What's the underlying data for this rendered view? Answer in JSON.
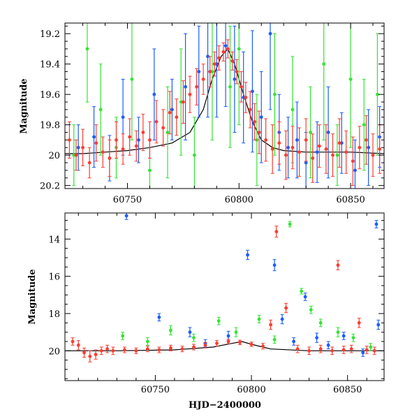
{
  "chart_data": [
    {
      "type": "scatter",
      "panel": "top",
      "title": "",
      "xlabel": "",
      "ylabel": "Magnitude",
      "xlim": [
        60722,
        60865
      ],
      "ylim": [
        20.22,
        19.13
      ],
      "y_inverted": true,
      "xticks": [
        60750,
        60800,
        60850
      ],
      "yticks": [
        19.2,
        19.4,
        19.6,
        19.8,
        20,
        20.2
      ],
      "xtick_labels": [
        "60750",
        "60800",
        "60850"
      ],
      "ytick_labels": [
        "19.2",
        "19.4",
        "19.6",
        "19.8",
        "20",
        "20.2"
      ],
      "grid": false,
      "legend": "none",
      "model_curve": {
        "color": "#000000",
        "x": [
          60722,
          60730,
          60740,
          60750,
          60760,
          60770,
          60778,
          60784,
          60788,
          60792,
          60795,
          60798,
          60802,
          60806,
          60810,
          60815,
          60820,
          60830,
          60840,
          60850,
          60865
        ],
        "y": [
          19.99,
          19.99,
          19.98,
          19.97,
          19.95,
          19.92,
          19.85,
          19.7,
          19.5,
          19.35,
          19.3,
          19.4,
          19.6,
          19.78,
          19.9,
          19.95,
          19.97,
          19.98,
          19.98,
          19.98,
          19.99
        ]
      },
      "series": [
        {
          "color": "#1a5cff",
          "description": "blue points",
          "x": [
            60728,
            60735,
            60742,
            60748,
            60755,
            60762,
            60770,
            60776,
            60782,
            60786,
            60790,
            60794,
            60798,
            60802,
            60806,
            60810,
            60814,
            60818,
            60822,
            60826,
            60830,
            60835,
            60840,
            60846,
            60852,
            60858,
            60863
          ],
          "y": [
            19.95,
            19.88,
            20.02,
            19.75,
            19.9,
            19.6,
            19.7,
            19.55,
            19.45,
            19.35,
            19.4,
            19.28,
            19.5,
            19.62,
            19.58,
            19.75,
            19.2,
            19.85,
            19.95,
            19.9,
            20.05,
            19.98,
            19.85,
            19.92,
            20.1,
            19.95,
            19.88
          ],
          "err": [
            0.15,
            0.2,
            0.15,
            0.25,
            0.15,
            0.3,
            0.2,
            0.35,
            0.3,
            0.4,
            0.35,
            0.4,
            0.35,
            0.3,
            0.4,
            0.3,
            0.5,
            0.25,
            0.2,
            0.25,
            0.2,
            0.2,
            0.3,
            0.2,
            0.2,
            0.25,
            0.2
          ]
        },
        {
          "color": "#33e433",
          "description": "green points",
          "x": [
            60726,
            60732,
            60738,
            60745,
            60752,
            60760,
            60768,
            60774,
            60780,
            60788,
            60796,
            60800,
            60808,
            60816,
            60824,
            60832,
            60838,
            60844,
            60850,
            60856,
            60862
          ],
          "y": [
            20.0,
            19.3,
            19.7,
            19.95,
            19.5,
            20.1,
            19.85,
            19.65,
            20.0,
            19.45,
            19.55,
            19.3,
            19.9,
            19.6,
            19.7,
            19.85,
            19.4,
            20.0,
            19.5,
            19.8,
            19.6
          ],
          "err": [
            0.2,
            0.35,
            0.3,
            0.2,
            0.4,
            0.2,
            0.3,
            0.35,
            0.25,
            0.45,
            0.4,
            0.5,
            0.3,
            0.4,
            0.35,
            0.3,
            0.5,
            0.2,
            0.45,
            0.3,
            0.4
          ]
        },
        {
          "color": "#ff3b2f",
          "description": "red points",
          "x": [
            60724,
            60727,
            60730,
            60733,
            60736,
            60739,
            60742,
            60745,
            60748,
            60751,
            60754,
            60757,
            60760,
            60763,
            60766,
            60769,
            60772,
            60775,
            60778,
            60781,
            60784,
            60787,
            60789,
            60791,
            60793,
            60795,
            60797,
            60799,
            60801,
            60803,
            60805,
            60807,
            60809,
            60812,
            60815,
            60818,
            60821,
            60824,
            60827,
            60830,
            60833,
            60836,
            60839,
            60842,
            60845,
            60848,
            60851,
            60854,
            60857,
            60860,
            60863
          ],
          "y": [
            19.9,
            20.0,
            19.95,
            20.05,
            19.92,
            19.98,
            20.02,
            19.9,
            19.96,
            19.88,
            19.94,
            19.85,
            19.9,
            19.78,
            19.82,
            19.72,
            19.75,
            19.65,
            19.6,
            19.55,
            19.5,
            19.45,
            19.4,
            19.36,
            19.32,
            19.3,
            19.38,
            19.45,
            19.55,
            19.62,
            19.7,
            19.78,
            19.85,
            19.9,
            19.96,
            19.92,
            20.0,
            19.95,
            19.98,
            19.9,
            20.02,
            19.94,
            19.96,
            20.0,
            19.92,
            19.98,
            20.04,
            19.95,
            19.9,
            20.0,
            19.96
          ],
          "err": [
            0.12,
            0.1,
            0.12,
            0.1,
            0.12,
            0.1,
            0.12,
            0.12,
            0.1,
            0.12,
            0.1,
            0.12,
            0.12,
            0.14,
            0.12,
            0.14,
            0.12,
            0.14,
            0.12,
            0.12,
            0.1,
            0.1,
            0.08,
            0.08,
            0.06,
            0.06,
            0.06,
            0.08,
            0.1,
            0.1,
            0.12,
            0.12,
            0.14,
            0.14,
            0.16,
            0.14,
            0.16,
            0.14,
            0.16,
            0.14,
            0.16,
            0.14,
            0.16,
            0.14,
            0.16,
            0.14,
            0.16,
            0.14,
            0.16,
            0.14,
            0.16
          ]
        }
      ]
    },
    {
      "type": "scatter",
      "panel": "bottom",
      "title": "",
      "xlabel": "HJD−2400000",
      "ylabel": "Magnitude",
      "xlim": [
        60703,
        60869
      ],
      "ylim": [
        21.6,
        12.6
      ],
      "y_inverted": true,
      "xticks": [
        60750,
        60800,
        60850
      ],
      "yticks": [
        14,
        16,
        18,
        20
      ],
      "xtick_labels": [
        "60750",
        "60800",
        "60850"
      ],
      "ytick_labels": [
        "14",
        "16",
        "18",
        "20"
      ],
      "grid": false,
      "legend": "none",
      "model_curve": {
        "color": "#000000",
        "x": [
          60703,
          60730,
          60760,
          60780,
          60790,
          60795,
          60800,
          60810,
          60830,
          60869
        ],
        "y": [
          20.0,
          20.0,
          19.95,
          19.8,
          19.6,
          19.5,
          19.65,
          19.9,
          20.0,
          20.0
        ]
      },
      "series": [
        {
          "color": "#1a5cff",
          "description": "blue points",
          "x": [
            60735,
            60752,
            60768,
            60776,
            60788,
            60798,
            60812,
            60816,
            60822,
            60828,
            60834,
            60840,
            60848,
            60858,
            60865,
            60866
          ],
          "y": [
            12.75,
            18.2,
            19.0,
            19.6,
            19.2,
            14.85,
            15.4,
            18.3,
            19.5,
            17.1,
            19.3,
            19.7,
            19.2,
            20.1,
            13.2,
            18.6
          ],
          "err": [
            0.2,
            0.2,
            0.25,
            0.2,
            0.25,
            0.25,
            0.3,
            0.25,
            0.2,
            0.2,
            0.25,
            0.2,
            0.2,
            0.2,
            0.2,
            0.25
          ]
        },
        {
          "color": "#33e433",
          "description": "green points",
          "x": [
            60733,
            60746,
            60758,
            60770,
            60783,
            60792,
            60804,
            60812,
            60820,
            60826,
            60831,
            60836,
            60845,
            60853,
            60862
          ],
          "y": [
            19.2,
            19.5,
            18.9,
            19.3,
            18.4,
            19.0,
            18.3,
            19.4,
            13.2,
            16.8,
            17.8,
            18.5,
            19.0,
            19.3,
            19.8
          ],
          "err": [
            0.2,
            0.2,
            0.25,
            0.2,
            0.2,
            0.25,
            0.2,
            0.2,
            0.15,
            0.15,
            0.2,
            0.2,
            0.25,
            0.2,
            0.2
          ]
        },
        {
          "color": "#ff3b2f",
          "description": "red points",
          "x": [
            60707,
            60710,
            60713,
            60716,
            60719,
            60722,
            60725,
            60728,
            60734,
            60740,
            60746,
            60752,
            60758,
            60764,
            60770,
            60776,
            60782,
            60788,
            60794,
            60800,
            60806,
            60810,
            60813,
            60818,
            60824,
            60830,
            60836,
            60842,
            60845,
            60848,
            60852,
            60856,
            60860,
            60864
          ],
          "y": [
            19.5,
            19.7,
            20.1,
            20.3,
            20.2,
            20.0,
            19.9,
            20.0,
            19.95,
            20.0,
            19.9,
            19.95,
            19.85,
            19.9,
            19.8,
            19.7,
            19.6,
            19.5,
            19.55,
            19.65,
            19.75,
            18.6,
            13.6,
            17.7,
            19.9,
            20.0,
            19.9,
            20.0,
            15.4,
            19.95,
            19.9,
            18.5,
            19.95,
            20.0
          ],
          "err": [
            0.2,
            0.25,
            0.25,
            0.3,
            0.25,
            0.2,
            0.2,
            0.2,
            0.15,
            0.15,
            0.15,
            0.15,
            0.15,
            0.15,
            0.15,
            0.15,
            0.15,
            0.12,
            0.12,
            0.12,
            0.15,
            0.25,
            0.3,
            0.25,
            0.2,
            0.2,
            0.2,
            0.2,
            0.25,
            0.2,
            0.2,
            0.25,
            0.2,
            0.2
          ]
        }
      ]
    }
  ]
}
